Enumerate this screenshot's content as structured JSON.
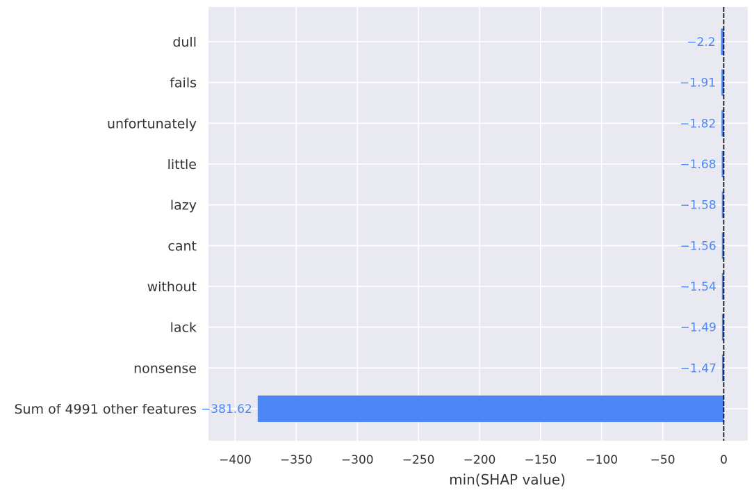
{
  "chart_data": {
    "type": "bar",
    "orientation": "horizontal",
    "categories": [
      "dull",
      "fails",
      "unfortunately",
      "little",
      "lazy",
      "cant",
      "without",
      "lack",
      "nonsense",
      "Sum of 4991 other features"
    ],
    "values": [
      -2.2,
      -1.91,
      -1.82,
      -1.68,
      -1.58,
      -1.56,
      -1.54,
      -1.49,
      -1.47,
      -381.62
    ],
    "value_labels": [
      "−2.2",
      "−1.91",
      "−1.82",
      "−1.68",
      "−1.58",
      "−1.56",
      "−1.54",
      "−1.49",
      "−1.47",
      "−381.62"
    ],
    "xlabel": "min(SHAP value)",
    "ylabel": "",
    "title": "",
    "xlim": [
      -422,
      20
    ],
    "xticks": [
      -400,
      -350,
      -300,
      -250,
      -200,
      -150,
      -100,
      -50,
      0
    ],
    "xtick_labels": [
      "−400",
      "−350",
      "−300",
      "−250",
      "−200",
      "−150",
      "−100",
      "−50",
      "0"
    ],
    "grid": true,
    "zero_line": true,
    "colors": {
      "bar": "#4c87f5",
      "label": "#4c87f5",
      "background": "#e8e9f1",
      "grid": "#ffffff",
      "text": "#333333",
      "zero_line": "#000000"
    }
  }
}
